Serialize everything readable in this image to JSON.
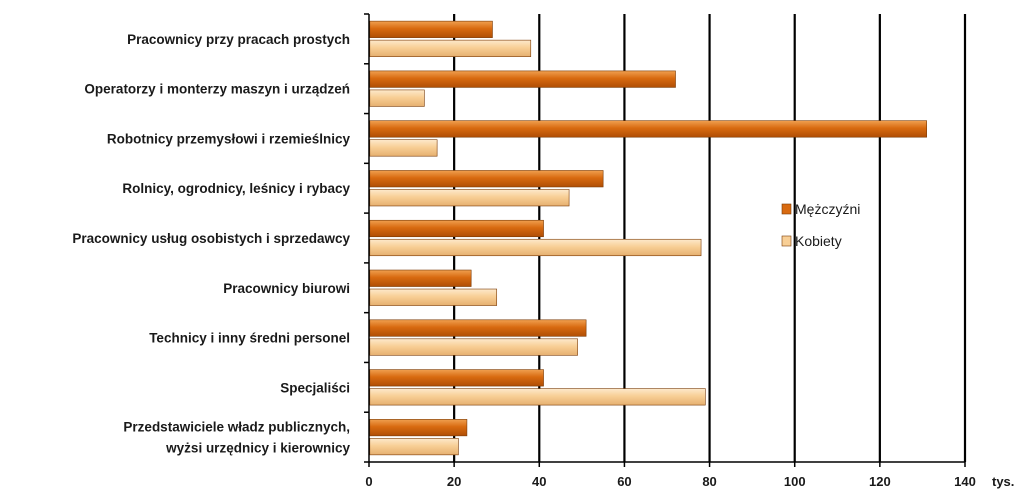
{
  "chart_data": {
    "type": "bar",
    "orientation": "horizontal",
    "categories": [
      [
        "Pracownicy przy pracach prostych"
      ],
      [
        "Operatorzy i monterzy maszyn i urządzeń"
      ],
      [
        "Robotnicy przemysłowi i rzemieślnicy"
      ],
      [
        "Rolnicy, ogrodnicy, leśnicy i rybacy"
      ],
      [
        "Pracownicy usług osobistych i sprzedawcy"
      ],
      [
        "Pracownicy biurowi"
      ],
      [
        "Technicy i inny średni personel"
      ],
      [
        "Specjaliści"
      ],
      [
        "Przedstawiciele władz publicznych,",
        "wyżsi urzędnicy i kierownicy"
      ]
    ],
    "series": [
      {
        "name": "Mężczyźni",
        "color": "#D86A10",
        "values": [
          29,
          72,
          131,
          55,
          41,
          24,
          51,
          41,
          23
        ]
      },
      {
        "name": "Kobiety",
        "color": "#F8CF96",
        "values": [
          38,
          13,
          16,
          47,
          78,
          30,
          49,
          79,
          21
        ]
      }
    ],
    "xlim": [
      0,
      140
    ],
    "xticks": [
      0,
      20,
      40,
      60,
      80,
      100,
      120,
      140
    ],
    "x_unit": "tys.",
    "grid": true,
    "legend_position": "right"
  }
}
